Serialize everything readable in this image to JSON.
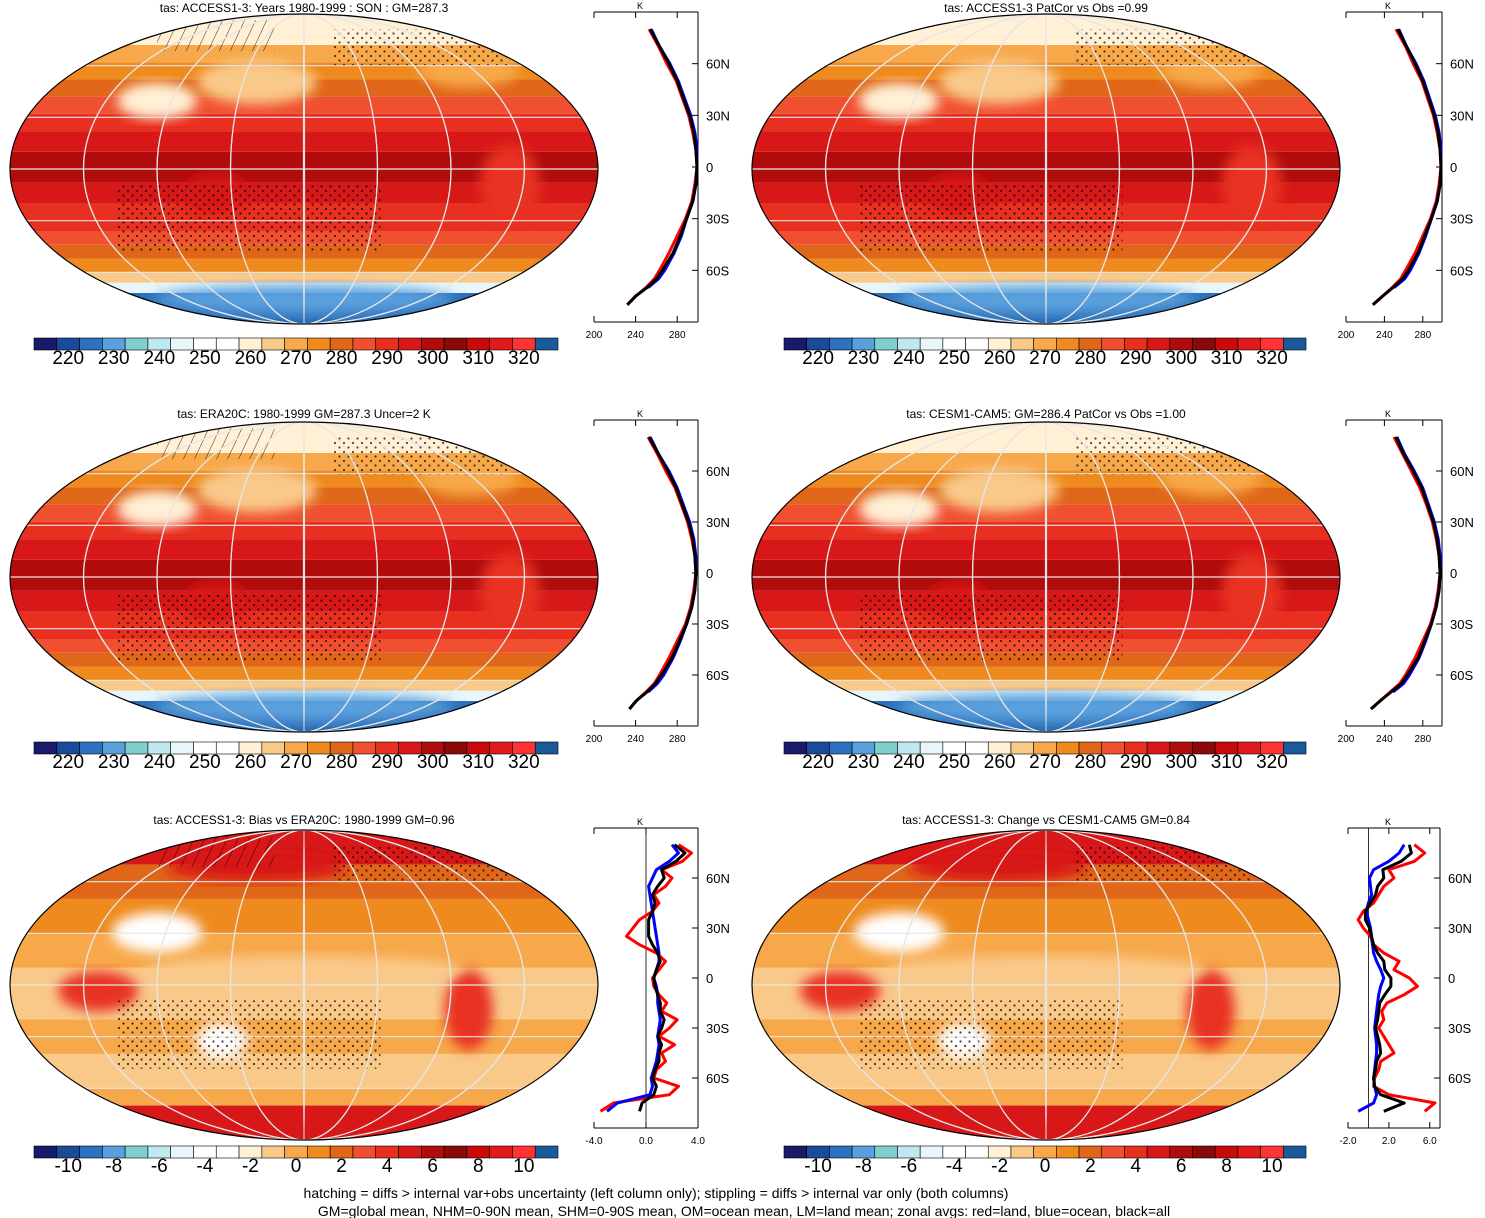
{
  "footer": {
    "line1": "hatching = diffs > internal var+obs uncertainty (left column only); stippling = diffs > internal var only (both columns)",
    "line2": "GM=global mean, NHM=0-90N mean, SHM=0-90S mean, OM=ocean mean, LM=land mean; zonal avgs: red=land, blue=ocean, black=all"
  },
  "colors": {
    "land": "#ff0000",
    "ocean": "#0000ff",
    "all": "#000000"
  },
  "chart_data": [
    {
      "type": "heatmap",
      "id": "p1",
      "title": "tas: ACCESS1-3: Years 1980-1999 : SON : GM=287.3",
      "variable": "tas",
      "units": "K",
      "kind": "absolute",
      "colorbar_ticks": [
        "220",
        "230",
        "240",
        "250",
        "260",
        "270",
        "280",
        "290",
        "300",
        "310",
        "320"
      ],
      "colorbar_colors": [
        "#1a1a6b",
        "#1a4a9a",
        "#2c72c0",
        "#5aa0dd",
        "#7fcfcc",
        "#bfe8f0",
        "#e8f6fa",
        "#ffffff",
        "#ffffff",
        "#fff0d6",
        "#f9c98a",
        "#f7a84a",
        "#ee8a1e",
        "#e0661a",
        "#f05030",
        "#e83020",
        "#d81818",
        "#b00c0c",
        "#8a0a0a",
        "#c80a0a",
        "#e01a1a",
        "#ff3333",
        "#1a5a9a"
      ],
      "zonal": {
        "xlim": [
          200,
          300
        ],
        "xticks": [
          "200",
          "240",
          "280"
        ],
        "lat_labels": [
          "60N",
          "30N",
          "0",
          "30S",
          "60S"
        ],
        "units_label": "K",
        "lat": [
          -80,
          -75,
          -70,
          -65,
          -60,
          -50,
          -40,
          -30,
          -20,
          -10,
          0,
          10,
          20,
          30,
          40,
          50,
          60,
          70,
          80
        ],
        "land": [
          232,
          240,
          250,
          258,
          263,
          272,
          280,
          288,
          294,
          297,
          299,
          298,
          295,
          291,
          285,
          279,
          270,
          262,
          253
        ],
        "ocean": [
          null,
          null,
          252,
          262,
          268,
          277,
          284,
          289,
          295,
          298,
          299,
          299,
          297,
          293,
          287,
          281,
          273,
          263,
          255
        ],
        "all": [
          232,
          240,
          251,
          260,
          266,
          276,
          283,
          289,
          295,
          298,
          299,
          298,
          296,
          292,
          286,
          280,
          272,
          263,
          254
        ]
      }
    },
    {
      "type": "heatmap",
      "id": "p2",
      "title": "tas: ACCESS1-3 PatCor vs Obs =0.99",
      "variable": "tas",
      "units": "K",
      "kind": "absolute",
      "colorbar_ticks": [
        "220",
        "230",
        "240",
        "250",
        "260",
        "270",
        "280",
        "290",
        "300",
        "310",
        "320"
      ],
      "colorbar_colors": [
        "#1a1a6b",
        "#1a4a9a",
        "#2c72c0",
        "#5aa0dd",
        "#7fcfcc",
        "#bfe8f0",
        "#e8f6fa",
        "#ffffff",
        "#ffffff",
        "#fff0d6",
        "#f9c98a",
        "#f7a84a",
        "#ee8a1e",
        "#e0661a",
        "#f05030",
        "#e83020",
        "#d81818",
        "#b00c0c",
        "#8a0a0a",
        "#c80a0a",
        "#e01a1a",
        "#ff3333",
        "#1a5a9a"
      ],
      "zonal": {
        "xlim": [
          200,
          300
        ],
        "xticks": [
          "200",
          "240",
          "280"
        ],
        "lat_labels": [
          "60N",
          "30N",
          "0",
          "30S",
          "60S"
        ],
        "units_label": "K",
        "lat": [
          -80,
          -75,
          -70,
          -65,
          -60,
          -50,
          -40,
          -30,
          -20,
          -10,
          0,
          10,
          20,
          30,
          40,
          50,
          60,
          70,
          80
        ],
        "land": [
          228,
          238,
          248,
          257,
          262,
          272,
          280,
          288,
          294,
          297,
          299,
          298,
          295,
          291,
          285,
          279,
          270,
          262,
          252
        ],
        "ocean": [
          null,
          null,
          250,
          261,
          267,
          276,
          283,
          289,
          295,
          298,
          299,
          299,
          297,
          293,
          287,
          281,
          273,
          263,
          255
        ],
        "all": [
          228,
          238,
          249,
          259,
          265,
          275,
          282,
          289,
          295,
          298,
          299,
          298,
          296,
          292,
          286,
          280,
          272,
          263,
          254
        ]
      }
    },
    {
      "type": "heatmap",
      "id": "p3",
      "title": "tas: ERA20C: 1980-1999 GM=287.3 Uncer=2 K",
      "variable": "tas",
      "units": "K",
      "kind": "absolute",
      "colorbar_ticks": [
        "220",
        "230",
        "240",
        "250",
        "260",
        "270",
        "280",
        "290",
        "300",
        "310",
        "320"
      ],
      "colorbar_colors": [
        "#1a1a6b",
        "#1a4a9a",
        "#2c72c0",
        "#5aa0dd",
        "#7fcfcc",
        "#bfe8f0",
        "#e8f6fa",
        "#ffffff",
        "#ffffff",
        "#fff0d6",
        "#f9c98a",
        "#f7a84a",
        "#ee8a1e",
        "#e0661a",
        "#f05030",
        "#e83020",
        "#d81818",
        "#b00c0c",
        "#8a0a0a",
        "#c80a0a",
        "#e01a1a",
        "#ff3333",
        "#1a5a9a"
      ],
      "zonal": {
        "xlim": [
          200,
          300
        ],
        "xticks": [
          "200",
          "240",
          "280"
        ],
        "lat_labels": [
          "60N",
          "30N",
          "0",
          "30S",
          "60S"
        ],
        "units_label": "K",
        "lat": [
          -80,
          -75,
          -70,
          -65,
          -60,
          -50,
          -40,
          -30,
          -20,
          -10,
          0,
          10,
          20,
          30,
          40,
          50,
          60,
          70,
          80
        ],
        "land": [
          234,
          241,
          250,
          258,
          263,
          272,
          280,
          288,
          293,
          296,
          298,
          297,
          294,
          290,
          284,
          278,
          269,
          261,
          252
        ],
        "ocean": [
          null,
          null,
          252,
          261,
          267,
          276,
          283,
          289,
          294,
          297,
          298,
          298,
          296,
          292,
          286,
          280,
          272,
          262,
          254
        ],
        "all": [
          234,
          241,
          251,
          259,
          265,
          275,
          282,
          289,
          294,
          297,
          298,
          297,
          295,
          291,
          285,
          279,
          271,
          262,
          253
        ]
      }
    },
    {
      "type": "heatmap",
      "id": "p4",
      "title": "tas: CESM1-CAM5: GM=286.4 PatCor vs Obs =1.00",
      "variable": "tas",
      "units": "K",
      "kind": "absolute",
      "colorbar_ticks": [
        "220",
        "230",
        "240",
        "250",
        "260",
        "270",
        "280",
        "290",
        "300",
        "310",
        "320"
      ],
      "colorbar_colors": [
        "#1a1a6b",
        "#1a4a9a",
        "#2c72c0",
        "#5aa0dd",
        "#7fcfcc",
        "#bfe8f0",
        "#e8f6fa",
        "#ffffff",
        "#ffffff",
        "#fff0d6",
        "#f9c98a",
        "#f7a84a",
        "#ee8a1e",
        "#e0661a",
        "#f05030",
        "#e83020",
        "#d81818",
        "#b00c0c",
        "#8a0a0a",
        "#c80a0a",
        "#e01a1a",
        "#ff3333",
        "#1a5a9a"
      ],
      "zonal": {
        "xlim": [
          200,
          300
        ],
        "xticks": [
          "200",
          "240",
          "280"
        ],
        "lat_labels": [
          "60N",
          "30N",
          "0",
          "30S",
          "60S"
        ],
        "units_label": "K",
        "lat": [
          -80,
          -75,
          -70,
          -65,
          -60,
          -50,
          -40,
          -30,
          -20,
          -10,
          0,
          10,
          20,
          30,
          40,
          50,
          60,
          70,
          80
        ],
        "land": [
          226,
          236,
          246,
          256,
          262,
          272,
          280,
          288,
          293,
          296,
          298,
          297,
          294,
          290,
          284,
          277,
          268,
          259,
          250
        ],
        "ocean": [
          null,
          null,
          249,
          260,
          266,
          276,
          283,
          289,
          294,
          297,
          298,
          298,
          296,
          292,
          286,
          280,
          271,
          261,
          253
        ],
        "all": [
          226,
          236,
          247,
          258,
          264,
          275,
          282,
          289,
          294,
          297,
          298,
          297,
          295,
          291,
          285,
          279,
          270,
          260,
          252
        ]
      }
    },
    {
      "type": "heatmap",
      "id": "p5",
      "title": "tas: ACCESS1-3: Bias vs ERA20C: 1980-1999  GM=0.96",
      "variable": "tas",
      "units": "K",
      "kind": "difference",
      "colorbar_ticks": [
        "-10",
        "-8",
        "-6",
        "-4",
        "-2",
        "0",
        "2",
        "4",
        "6",
        "8",
        "10"
      ],
      "colorbar_colors": [
        "#1a1a6b",
        "#1a4a9a",
        "#2c72c0",
        "#5aa0dd",
        "#7fcfcc",
        "#bfe8f0",
        "#e8f6fa",
        "#ffffff",
        "#ffffff",
        "#fff0d6",
        "#f9c98a",
        "#f7a84a",
        "#ee8a1e",
        "#e0661a",
        "#f05030",
        "#e83020",
        "#d81818",
        "#b00c0c",
        "#8a0a0a",
        "#c80a0a",
        "#e01a1a",
        "#ff3333",
        "#1a5a9a"
      ],
      "zonal": {
        "xlim": [
          -4,
          4
        ],
        "xticks": [
          "-4.0",
          "0.0",
          "4.0"
        ],
        "lat_labels": [
          "60N",
          "30N",
          "0",
          "30S",
          "60S"
        ],
        "units_label": "K",
        "lat": [
          -80,
          -75,
          -70,
          -65,
          -60,
          -55,
          -50,
          -45,
          -40,
          -35,
          -30,
          -25,
          -20,
          -15,
          -10,
          -5,
          0,
          5,
          10,
          15,
          20,
          25,
          30,
          35,
          40,
          45,
          50,
          55,
          60,
          65,
          70,
          75,
          80
        ],
        "land": [
          -3.5,
          -2.5,
          1.8,
          2.5,
          0.6,
          0.8,
          1.5,
          1.2,
          2.2,
          1.0,
          1.8,
          2.4,
          1.2,
          1.6,
          1.0,
          0.6,
          0.5,
          1.0,
          1.5,
          0.8,
          -0.5,
          -1.5,
          -1.0,
          -0.5,
          0.5,
          1.0,
          0.6,
          1.5,
          2.0,
          1.2,
          2.8,
          3.5,
          2.5
        ],
        "ocean": [
          -3.0,
          -2.2,
          0.3,
          0.5,
          0.4,
          0.6,
          0.8,
          0.9,
          1.0,
          0.9,
          1.0,
          1.1,
          1.0,
          0.9,
          0.9,
          0.8,
          0.6,
          0.8,
          1.0,
          1.0,
          0.9,
          0.8,
          0.7,
          0.6,
          0.5,
          0.4,
          0.3,
          0.2,
          0.5,
          0.8,
          1.8,
          2.5,
          2.0
        ],
        "all": [
          -0.5,
          -0.3,
          0.6,
          0.8,
          0.5,
          0.7,
          1.0,
          1.0,
          1.2,
          0.9,
          1.2,
          1.4,
          1.1,
          1.1,
          0.9,
          0.7,
          0.6,
          0.8,
          1.1,
          0.9,
          0.5,
          0.2,
          0.2,
          0.2,
          0.5,
          0.7,
          0.5,
          0.9,
          1.4,
          1.2,
          2.3,
          3.0,
          2.2
        ]
      }
    },
    {
      "type": "heatmap",
      "id": "p6",
      "title": "tas: ACCESS1-3: Change vs CESM1-CAM5 GM=0.84",
      "variable": "tas",
      "units": "K",
      "kind": "difference",
      "colorbar_ticks": [
        "-10",
        "-8",
        "-6",
        "-4",
        "-2",
        "0",
        "2",
        "4",
        "6",
        "8",
        "10"
      ],
      "colorbar_colors": [
        "#1a1a6b",
        "#1a4a9a",
        "#2c72c0",
        "#5aa0dd",
        "#7fcfcc",
        "#bfe8f0",
        "#e8f6fa",
        "#ffffff",
        "#ffffff",
        "#fff0d6",
        "#f9c98a",
        "#f7a84a",
        "#ee8a1e",
        "#e0661a",
        "#f05030",
        "#e83020",
        "#d81818",
        "#b00c0c",
        "#8a0a0a",
        "#c80a0a",
        "#e01a1a",
        "#ff3333",
        "#1a5a9a"
      ],
      "zonal": {
        "xlim": [
          -2,
          7
        ],
        "xticks": [
          "-2.0",
          "2.0",
          "6.0"
        ],
        "lat_labels": [
          "60N",
          "30N",
          "0",
          "30S",
          "60S"
        ],
        "units_label": "K",
        "lat": [
          -80,
          -75,
          -70,
          -65,
          -60,
          -55,
          -50,
          -45,
          -40,
          -35,
          -30,
          -25,
          -20,
          -15,
          -10,
          -5,
          0,
          5,
          10,
          15,
          20,
          25,
          30,
          35,
          40,
          45,
          50,
          55,
          60,
          65,
          70,
          75,
          80
        ],
        "land": [
          5.5,
          6.5,
          2.0,
          0.5,
          0.6,
          1.0,
          1.2,
          2.5,
          2.0,
          1.5,
          1.0,
          1.5,
          1.3,
          1.8,
          3.5,
          4.8,
          4.0,
          2.5,
          3.0,
          1.5,
          0.5,
          0.2,
          -0.5,
          -1.0,
          -0.5,
          0.5,
          1.0,
          1.5,
          2.5,
          2.0,
          4.5,
          5.5,
          4.5
        ],
        "ocean": [
          -1.0,
          0.5,
          0.8,
          0.6,
          0.5,
          0.6,
          0.7,
          0.8,
          0.8,
          0.7,
          0.6,
          0.7,
          0.8,
          0.9,
          1.0,
          1.2,
          1.5,
          1.2,
          0.8,
          0.5,
          0.4,
          0.3,
          0.2,
          0.0,
          -0.2,
          0.0,
          0.3,
          0.2,
          0.1,
          0.5,
          2.0,
          3.0,
          3.5
        ],
        "all": [
          1.5,
          3.5,
          1.2,
          0.6,
          0.5,
          0.7,
          0.8,
          1.2,
          1.1,
          0.9,
          0.7,
          0.9,
          1.0,
          1.1,
          1.6,
          2.2,
          2.2,
          1.6,
          1.5,
          0.9,
          0.5,
          0.3,
          0.1,
          -0.3,
          -0.3,
          0.2,
          0.7,
          0.9,
          1.5,
          1.4,
          3.2,
          4.2,
          4.0
        ]
      }
    }
  ]
}
